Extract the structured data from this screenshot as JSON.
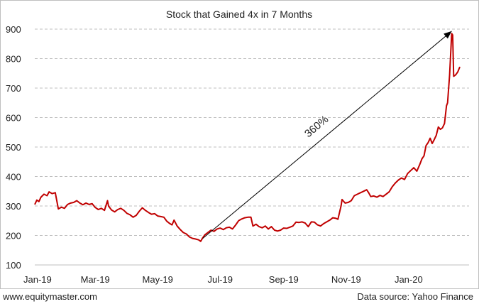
{
  "chart_data": {
    "type": "line",
    "title": "Stock that Gained 4x in 7 Months",
    "xlabel": "",
    "ylabel": "",
    "x_tick_labels": [
      "Jan-19",
      "Mar-19",
      "May-19",
      "Jul-19",
      "Sep-19",
      "Nov-19",
      "Jan-20"
    ],
    "y_ticks": [
      100,
      200,
      300,
      400,
      500,
      600,
      700,
      800,
      900
    ],
    "ylim": [
      100,
      900
    ],
    "xlim": [
      "2019-01-01",
      "2020-02-29"
    ],
    "grid": "horizontal-dashed",
    "colors": {
      "series": "#c00000",
      "grid": "#bfbfbf",
      "annotation": "#000000"
    },
    "series": [
      {
        "values": [
          [
            "2019-01-01",
            305
          ],
          [
            "2019-01-03",
            320
          ],
          [
            "2019-01-05",
            315
          ],
          [
            "2019-01-07",
            330
          ],
          [
            "2019-01-10",
            340
          ],
          [
            "2019-01-13",
            335
          ],
          [
            "2019-01-15",
            348
          ],
          [
            "2019-01-18",
            342
          ],
          [
            "2019-01-21",
            345
          ],
          [
            "2019-01-24",
            290
          ],
          [
            "2019-01-27",
            296
          ],
          [
            "2019-01-30",
            292
          ],
          [
            "2019-02-02",
            305
          ],
          [
            "2019-02-05",
            310
          ],
          [
            "2019-02-08",
            312
          ],
          [
            "2019-02-11",
            318
          ],
          [
            "2019-02-14",
            310
          ],
          [
            "2019-02-17",
            304
          ],
          [
            "2019-02-20",
            310
          ],
          [
            "2019-02-23",
            305
          ],
          [
            "2019-02-26",
            308
          ],
          [
            "2019-03-01",
            295
          ],
          [
            "2019-03-04",
            288
          ],
          [
            "2019-03-07",
            292
          ],
          [
            "2019-03-10",
            285
          ],
          [
            "2019-03-13",
            318
          ],
          [
            "2019-03-14",
            300
          ],
          [
            "2019-03-17",
            286
          ],
          [
            "2019-03-20",
            280
          ],
          [
            "2019-03-23",
            288
          ],
          [
            "2019-03-26",
            292
          ],
          [
            "2019-03-29",
            285
          ],
          [
            "2019-04-01",
            275
          ],
          [
            "2019-04-04",
            270
          ],
          [
            "2019-04-07",
            262
          ],
          [
            "2019-04-10",
            268
          ],
          [
            "2019-04-13",
            282
          ],
          [
            "2019-04-16",
            294
          ],
          [
            "2019-04-19",
            285
          ],
          [
            "2019-04-22",
            278
          ],
          [
            "2019-04-25",
            272
          ],
          [
            "2019-04-28",
            274
          ],
          [
            "2019-05-01",
            266
          ],
          [
            "2019-05-04",
            264
          ],
          [
            "2019-05-07",
            262
          ],
          [
            "2019-05-10",
            248
          ],
          [
            "2019-05-13",
            240
          ],
          [
            "2019-05-15",
            236
          ],
          [
            "2019-05-17",
            252
          ],
          [
            "2019-05-20",
            232
          ],
          [
            "2019-05-23",
            220
          ],
          [
            "2019-05-26",
            210
          ],
          [
            "2019-05-29",
            205
          ],
          [
            "2019-06-01",
            195
          ],
          [
            "2019-06-04",
            190
          ],
          [
            "2019-06-07",
            188
          ],
          [
            "2019-06-10",
            185
          ],
          [
            "2019-06-12",
            180
          ],
          [
            "2019-06-14",
            192
          ],
          [
            "2019-06-16",
            202
          ],
          [
            "2019-06-19",
            210
          ],
          [
            "2019-06-22",
            218
          ],
          [
            "2019-06-25",
            214
          ],
          [
            "2019-06-28",
            222
          ],
          [
            "2019-07-01",
            225
          ],
          [
            "2019-07-04",
            220
          ],
          [
            "2019-07-07",
            226
          ],
          [
            "2019-07-10",
            228
          ],
          [
            "2019-07-13",
            222
          ],
          [
            "2019-07-16",
            235
          ],
          [
            "2019-07-19",
            250
          ],
          [
            "2019-07-22",
            256
          ],
          [
            "2019-07-25",
            260
          ],
          [
            "2019-07-28",
            262
          ],
          [
            "2019-07-31",
            262
          ],
          [
            "2019-08-02",
            232
          ],
          [
            "2019-08-05",
            238
          ],
          [
            "2019-08-08",
            230
          ],
          [
            "2019-08-11",
            226
          ],
          [
            "2019-08-14",
            232
          ],
          [
            "2019-08-17",
            222
          ],
          [
            "2019-08-20",
            230
          ],
          [
            "2019-08-23",
            218
          ],
          [
            "2019-08-26",
            215
          ],
          [
            "2019-08-29",
            218
          ],
          [
            "2019-09-01",
            225
          ],
          [
            "2019-09-04",
            224
          ],
          [
            "2019-09-07",
            228
          ],
          [
            "2019-09-10",
            232
          ],
          [
            "2019-09-13",
            245
          ],
          [
            "2019-09-16",
            244
          ],
          [
            "2019-09-19",
            246
          ],
          [
            "2019-09-22",
            242
          ],
          [
            "2019-09-25",
            230
          ],
          [
            "2019-09-28",
            246
          ],
          [
            "2019-10-01",
            245
          ],
          [
            "2019-10-04",
            236
          ],
          [
            "2019-10-07",
            232
          ],
          [
            "2019-10-10",
            240
          ],
          [
            "2019-10-13",
            246
          ],
          [
            "2019-10-16",
            252
          ],
          [
            "2019-10-19",
            260
          ],
          [
            "2019-10-22",
            258
          ],
          [
            "2019-10-24",
            255
          ],
          [
            "2019-10-27",
            300
          ],
          [
            "2019-10-28",
            322
          ],
          [
            "2019-10-31",
            310
          ],
          [
            "2019-11-03",
            312
          ],
          [
            "2019-11-06",
            318
          ],
          [
            "2019-11-09",
            335
          ],
          [
            "2019-11-12",
            340
          ],
          [
            "2019-11-15",
            345
          ],
          [
            "2019-11-18",
            350
          ],
          [
            "2019-11-21",
            355
          ],
          [
            "2019-11-23",
            345
          ],
          [
            "2019-11-25",
            332
          ],
          [
            "2019-11-28",
            334
          ],
          [
            "2019-12-01",
            330
          ],
          [
            "2019-12-04",
            336
          ],
          [
            "2019-12-07",
            332
          ],
          [
            "2019-12-10",
            340
          ],
          [
            "2019-12-13",
            348
          ],
          [
            "2019-12-16",
            365
          ],
          [
            "2019-12-19",
            378
          ],
          [
            "2019-12-22",
            388
          ],
          [
            "2019-12-25",
            395
          ],
          [
            "2019-12-28",
            390
          ],
          [
            "2019-12-31",
            410
          ],
          [
            "2020-01-03",
            420
          ],
          [
            "2020-01-06",
            430
          ],
          [
            "2020-01-09",
            418
          ],
          [
            "2020-01-12",
            442
          ],
          [
            "2020-01-14",
            460
          ],
          [
            "2020-01-16",
            470
          ],
          [
            "2020-01-18",
            505
          ],
          [
            "2020-01-20",
            515
          ],
          [
            "2020-01-22",
            530
          ],
          [
            "2020-01-24",
            512
          ],
          [
            "2020-01-26",
            525
          ],
          [
            "2020-01-28",
            540
          ],
          [
            "2020-01-30",
            568
          ],
          [
            "2020-02-01",
            560
          ],
          [
            "2020-02-03",
            565
          ],
          [
            "2020-02-05",
            580
          ],
          [
            "2020-02-07",
            640
          ],
          [
            "2020-02-08",
            650
          ],
          [
            "2020-02-10",
            745
          ],
          [
            "2020-02-12",
            885
          ],
          [
            "2020-02-13",
            880
          ],
          [
            "2020-02-14",
            740
          ],
          [
            "2020-02-16",
            745
          ],
          [
            "2020-02-18",
            755
          ],
          [
            "2020-02-20",
            772
          ]
        ]
      }
    ],
    "annotation": {
      "text": "360%",
      "from": [
        "2019-06-14",
        190
      ],
      "to": [
        "2020-02-12",
        893
      ]
    }
  },
  "footer": {
    "source_left": "www.equitymaster.com",
    "source_right": "Data source: Yahoo Finance"
  }
}
